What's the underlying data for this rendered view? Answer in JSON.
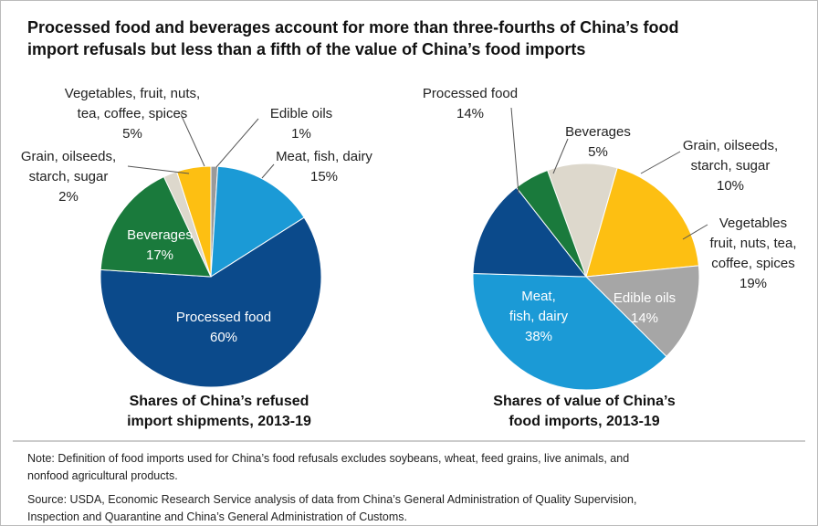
{
  "title": "Processed food and beverages account for more than three-fourths of China’s food\nimport refusals but less than a fifth of the value of China’s food imports",
  "note": "Note: Definition of food imports used for China’s food refusals excludes soybeans, wheat, feed grains, live animals, and\nnonfood agricultural products.",
  "source": "Source: USDA, Economic Research Service analysis of data from China’s General Administration of Quality Supervision,\nInspection and Quarantine and China’s General Administration of Customs.",
  "chart_data": [
    {
      "type": "pie",
      "title": "Shares of China’s refused\nimport shipments, 2013-19",
      "categories": [
        "Edible oils",
        "Meat, fish, dairy",
        "Processed food",
        "Beverages",
        "Grain, oilseeds,\nstarch, sugar",
        "Vegetables, fruit, nuts,\ntea, coffee, spices"
      ],
      "values": [
        1,
        15,
        60,
        17,
        2,
        5
      ],
      "value_labels": [
        "1%",
        "15%",
        "60%",
        "17%",
        "2%",
        "5%"
      ],
      "colors": [
        "#9a9a9a",
        "#1b9ad6",
        "#0b4a8b",
        "#1a7a3c",
        "#ddd8cc",
        "#fdbf12"
      ]
    },
    {
      "type": "pie",
      "title": "Shares of value of China’s\nfood imports, 2013-19",
      "categories": [
        "Grain, oilseeds,\nstarch, sugar",
        "Vegetables\nfruit, nuts, tea,\ncoffee, spices",
        "Edible oils",
        "Meat,\nfish, dairy",
        "Processed food",
        "Beverages"
      ],
      "values": [
        10,
        19,
        14,
        38,
        14,
        5
      ],
      "value_labels": [
        "10%",
        "19%",
        "14%",
        "38%",
        "14%",
        "5%"
      ],
      "colors": [
        "#ddd8cc",
        "#fdbf12",
        "#a6a6a6",
        "#1b9ad6",
        "#0b4a8b",
        "#1a7a3c"
      ]
    }
  ]
}
